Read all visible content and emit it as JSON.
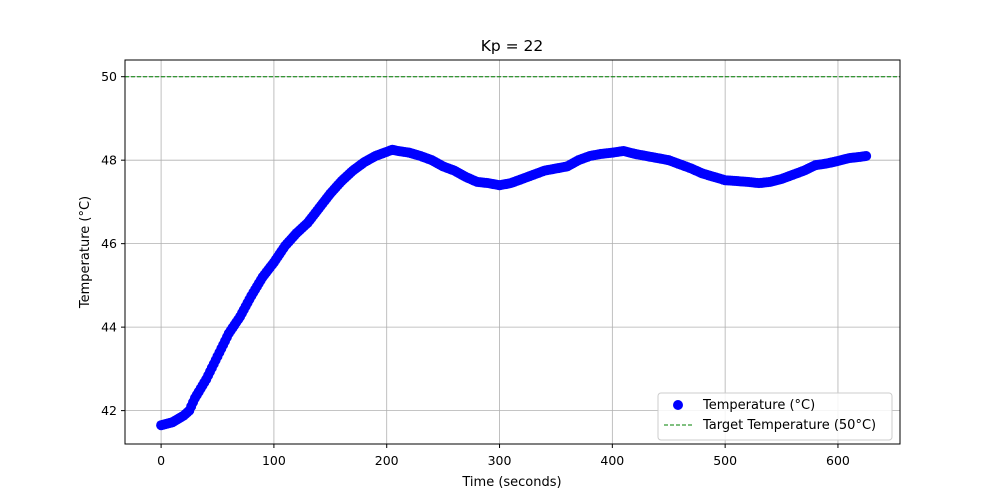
{
  "chart_data": {
    "type": "scatter",
    "title": "Kp = 22",
    "xlabel": "Time (seconds)",
    "ylabel": "Temperature (°C)",
    "xlim": [
      -32,
      655
    ],
    "ylim": [
      41.2,
      50.4
    ],
    "xticks": [
      0,
      100,
      200,
      300,
      400,
      500,
      600
    ],
    "yticks": [
      42,
      44,
      46,
      48,
      50
    ],
    "xtick_labels": [
      "0",
      "100",
      "200",
      "300",
      "400",
      "500",
      "600"
    ],
    "ytick_labels": [
      "42",
      "44",
      "46",
      "48",
      "50"
    ],
    "grid": true,
    "legend_position": "lower-right",
    "series": [
      {
        "name": "Temperature (°C)",
        "kind": "scatter",
        "color": "#0000ff",
        "points": [
          [
            0,
            41.65
          ],
          [
            10,
            41.72
          ],
          [
            20,
            41.88
          ],
          [
            25,
            42.0
          ],
          [
            30,
            42.3
          ],
          [
            40,
            42.75
          ],
          [
            50,
            43.3
          ],
          [
            60,
            43.85
          ],
          [
            70,
            44.25
          ],
          [
            80,
            44.75
          ],
          [
            90,
            45.2
          ],
          [
            100,
            45.55
          ],
          [
            110,
            45.95
          ],
          [
            120,
            46.25
          ],
          [
            130,
            46.5
          ],
          [
            140,
            46.85
          ],
          [
            150,
            47.2
          ],
          [
            160,
            47.5
          ],
          [
            170,
            47.75
          ],
          [
            180,
            47.95
          ],
          [
            190,
            48.1
          ],
          [
            200,
            48.2
          ],
          [
            205,
            48.25
          ],
          [
            210,
            48.22
          ],
          [
            220,
            48.18
          ],
          [
            230,
            48.1
          ],
          [
            240,
            48.0
          ],
          [
            250,
            47.85
          ],
          [
            260,
            47.75
          ],
          [
            270,
            47.6
          ],
          [
            280,
            47.48
          ],
          [
            290,
            47.45
          ],
          [
            300,
            47.4
          ],
          [
            310,
            47.45
          ],
          [
            320,
            47.55
          ],
          [
            330,
            47.65
          ],
          [
            340,
            47.75
          ],
          [
            350,
            47.8
          ],
          [
            360,
            47.85
          ],
          [
            370,
            48.0
          ],
          [
            380,
            48.1
          ],
          [
            390,
            48.15
          ],
          [
            400,
            48.18
          ],
          [
            410,
            48.22
          ],
          [
            420,
            48.15
          ],
          [
            430,
            48.1
          ],
          [
            440,
            48.05
          ],
          [
            450,
            48.0
          ],
          [
            460,
            47.9
          ],
          [
            470,
            47.8
          ],
          [
            480,
            47.68
          ],
          [
            490,
            47.6
          ],
          [
            500,
            47.52
          ],
          [
            510,
            47.5
          ],
          [
            520,
            47.48
          ],
          [
            530,
            47.45
          ],
          [
            540,
            47.48
          ],
          [
            550,
            47.55
          ],
          [
            560,
            47.65
          ],
          [
            570,
            47.75
          ],
          [
            580,
            47.88
          ],
          [
            590,
            47.92
          ],
          [
            600,
            47.98
          ],
          [
            610,
            48.05
          ],
          [
            620,
            48.08
          ],
          [
            625,
            48.1
          ]
        ]
      },
      {
        "name": "Target Temperature (50°C)",
        "kind": "hline",
        "color": "#008000",
        "y": 50
      }
    ]
  }
}
